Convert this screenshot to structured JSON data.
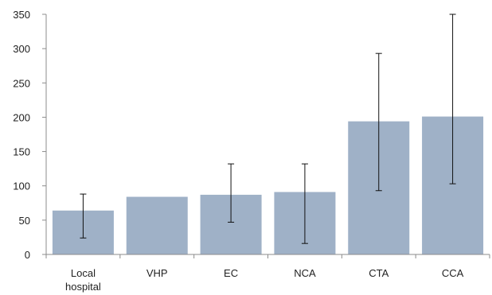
{
  "chart_data": {
    "type": "bar",
    "categories": [
      "Local hospital",
      "VHP",
      "EC",
      "NCA",
      "CTA",
      "CCA"
    ],
    "values": [
      64,
      84,
      87,
      91,
      194,
      201
    ],
    "error_low": [
      24,
      null,
      47,
      16,
      93,
      103
    ],
    "error_high": [
      88,
      null,
      132,
      132,
      293,
      350
    ],
    "ylim": [
      0,
      350
    ],
    "yticks": [
      0,
      50,
      100,
      150,
      200,
      250,
      300,
      350
    ],
    "title": "",
    "xlabel": "",
    "ylabel": "",
    "grid": false,
    "legend": "none"
  },
  "colors": {
    "bar": "#9fb1c7",
    "axis": "#8c8c8c",
    "error_bar": "#111111"
  }
}
